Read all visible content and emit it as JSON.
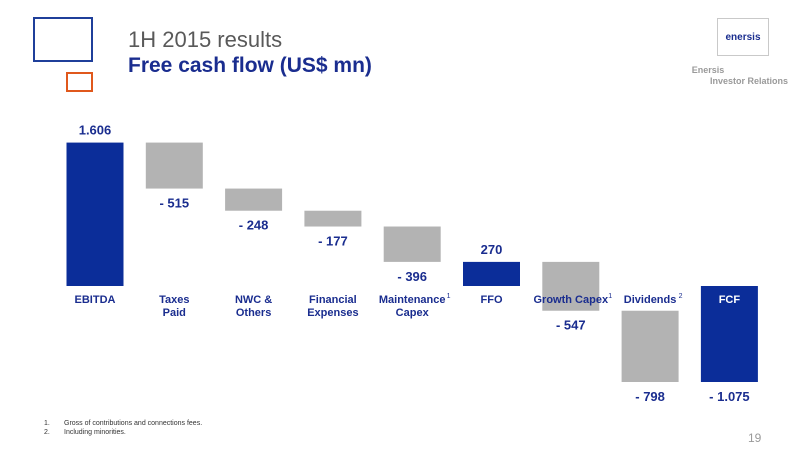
{
  "header": {
    "subtitle": "1H 2015 results",
    "title": "Free cash flow (US$ mn)"
  },
  "brand": {
    "logo_text": "enersis",
    "name": "Enersis",
    "department": "Investor Relations"
  },
  "colors": {
    "total_bar": "#0b2d99",
    "change_bar": "#b3b3b3",
    "title": "#1a2d8f",
    "accent_orange": "#e0581c"
  },
  "chart_data": {
    "type": "bar",
    "subtype": "waterfall",
    "categories": [
      [
        "EBITDA"
      ],
      [
        "Taxes",
        "Paid"
      ],
      [
        "NWC &",
        "Others"
      ],
      [
        "Financial",
        "Expenses"
      ],
      [
        "Maintenance",
        "Capex"
      ],
      [
        "FFO"
      ],
      [
        "Growth Capex"
      ],
      [
        "Dividends"
      ],
      [
        "FCF"
      ]
    ],
    "footnote_refs": [
      "",
      "",
      "",
      "",
      "1",
      "",
      "1",
      "2",
      ""
    ],
    "values": [
      1606,
      -515,
      -248,
      -177,
      -396,
      270,
      -547,
      -798,
      -1075
    ],
    "value_labels": [
      "1.606",
      "- 515",
      "- 248",
      "- 177",
      "- 396",
      "270",
      "- 547",
      "- 798",
      "- 1.075"
    ],
    "kinds": [
      "total",
      "change",
      "change",
      "change",
      "change",
      "total",
      "change",
      "change",
      "total"
    ],
    "grid": false,
    "legend": "none"
  },
  "footnotes": [
    {
      "num": "1.",
      "text": "Gross of contributions and connections fees."
    },
    {
      "num": "2.",
      "text": "Including minorities."
    }
  ],
  "page_number": "19"
}
